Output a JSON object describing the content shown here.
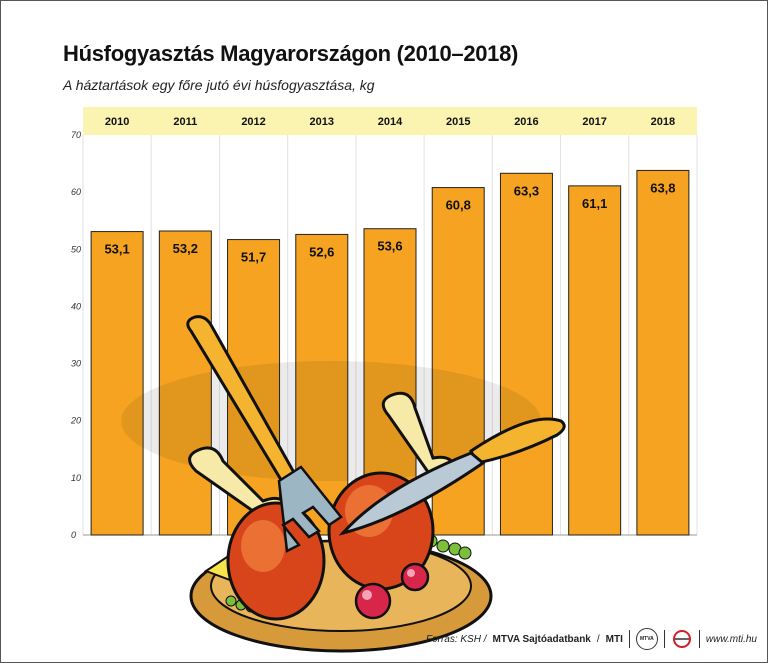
{
  "header": {
    "title": "Húsfogyasztás Magyarországon (2010–2018)",
    "subtitle": "A háztartások egy főre jutó évi húsfogyasztása, kg"
  },
  "chart_data": {
    "type": "bar",
    "categories": [
      "2010",
      "2011",
      "2012",
      "2013",
      "2014",
      "2015",
      "2016",
      "2017",
      "2018"
    ],
    "values": [
      53.1,
      53.2,
      51.7,
      52.6,
      53.6,
      60.8,
      63.3,
      61.1,
      63.8
    ],
    "value_labels": [
      "53,1",
      "53,2",
      "51,7",
      "52,6",
      "53,6",
      "60,8",
      "63,3",
      "61,1",
      "63,8"
    ],
    "y_ticks": [
      "0",
      "10",
      "20",
      "30",
      "40",
      "50",
      "60",
      "70"
    ],
    "ylim": [
      0,
      70
    ],
    "grid": "vertical",
    "bar_color": "#f5a321",
    "year_band_color": "#fbf3b0",
    "illustration": "roast-chicken-legs-plate-fork-knife"
  },
  "footer": {
    "source_label": "Forrás: KSH /",
    "agency": "MTVA Sajtóadatbank",
    "sep": "/",
    "org": "MTI",
    "badge_text": "MTVA",
    "site": "www.mti.hu"
  }
}
